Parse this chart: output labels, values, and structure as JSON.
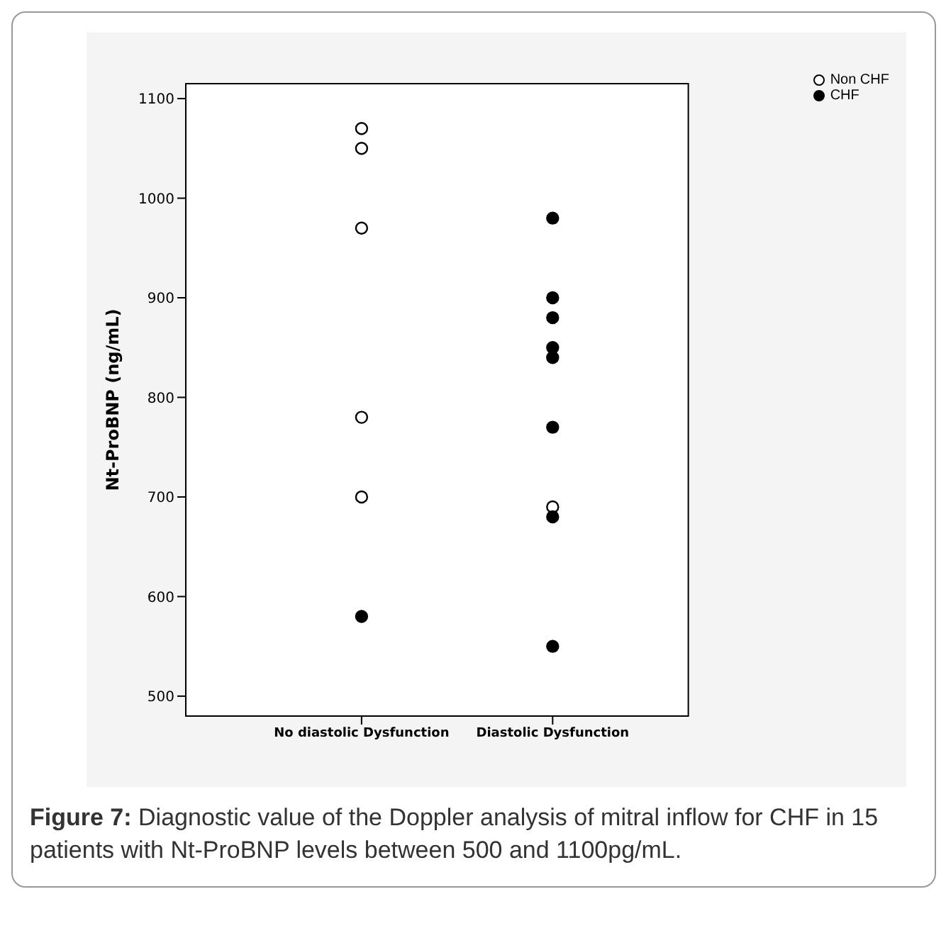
{
  "chart_data": {
    "type": "scatter",
    "ylabel": "Nt-ProBNP (ng/mL)",
    "categories": [
      "No diastolic Dysfunction",
      "Diastolic Dysfunction"
    ],
    "series": [
      {
        "name": "Non CHF",
        "color": "#ffffff",
        "x": [
          "No diastolic Dysfunction",
          "No diastolic Dysfunction",
          "No diastolic Dysfunction",
          "No diastolic Dysfunction",
          "No diastolic Dysfunction",
          "Diastolic Dysfunction"
        ],
        "values": [
          1070,
          1050,
          970,
          780,
          700,
          690
        ]
      },
      {
        "name": "CHF",
        "color": "#000000",
        "x": [
          "No diastolic Dysfunction",
          "Diastolic Dysfunction",
          "Diastolic Dysfunction",
          "Diastolic Dysfunction",
          "Diastolic Dysfunction",
          "Diastolic Dysfunction",
          "Diastolic Dysfunction",
          "Diastolic Dysfunction",
          "Diastolic Dysfunction"
        ],
        "values": [
          580,
          980,
          900,
          880,
          850,
          840,
          770,
          680,
          550
        ]
      }
    ],
    "ylim": [
      480,
      1115
    ],
    "yticks": [
      500,
      600,
      700,
      800,
      900,
      1000,
      1100
    ],
    "grid": false,
    "legend": "top right",
    "marker": "circle",
    "annotations": [
      "Figure 7: Diagnostic value of the Doppler analysis of mitral inflow for CHF in 15 patients with Nt-ProBNP levels between 500 and 1100pg/mL."
    ]
  }
}
